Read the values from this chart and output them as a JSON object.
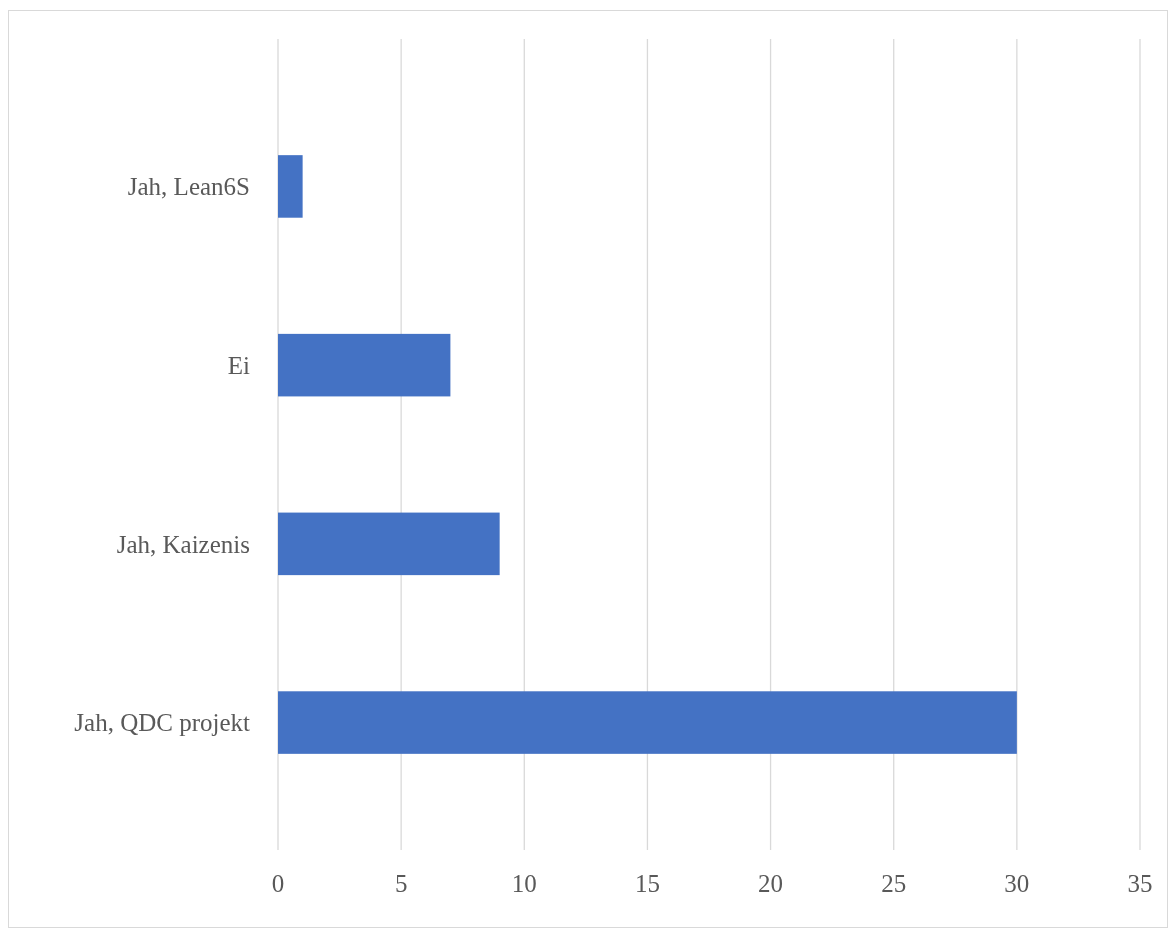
{
  "chart_data": {
    "type": "bar",
    "orientation": "horizontal",
    "categories": [
      "Jah, Lean6S",
      "Ei",
      "Jah, Kaizenis",
      "Jah, QDC projekt"
    ],
    "values": [
      1,
      7,
      9,
      30
    ],
    "color": "#4472c4",
    "xlim": [
      0,
      35
    ],
    "xticks": [
      0,
      5,
      10,
      15,
      20,
      25,
      30,
      35
    ],
    "grid": "x"
  }
}
